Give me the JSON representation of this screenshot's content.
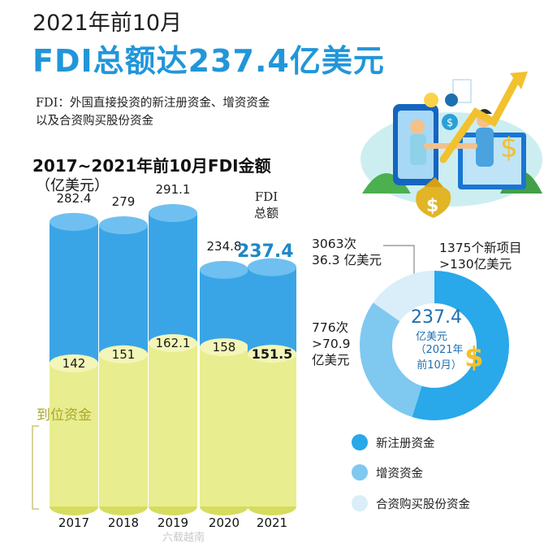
{
  "header": {
    "period": "2021年前10月",
    "title": "FDI总额达237.4亿美元",
    "definition_line1": "FDI：外国直接投资的新注册资金、增资资金",
    "definition_line2": "以及合资购买股份资金"
  },
  "chart_heading": "2017~2021年前10月FDI金额",
  "chart_unit": "（亿美元）",
  "fdi_total_label_line1": "FDI",
  "fdi_total_label_line2": "总额",
  "paid_in_label": "到位资金",
  "chart_data": [
    {
      "type": "bar",
      "title": "2017~2021年前10月FDI金额",
      "ylabel": "（亿美元）",
      "categories": [
        "2017",
        "2018",
        "2019",
        "2020",
        "2021"
      ],
      "series": [
        {
          "name": "FDI总额",
          "values": [
            282.4,
            279,
            291.1,
            234.8,
            237.4
          ],
          "labels": [
            "282.4",
            "279",
            "291.1",
            "234.8",
            "237.4"
          ],
          "color": "#3aa5e6"
        },
        {
          "name": "到位资金",
          "values": [
            142,
            151,
            162.1,
            158,
            151.5
          ],
          "labels": [
            "142",
            "151",
            "162.1",
            "158",
            "151.5"
          ],
          "color": "#e8ed8f"
        }
      ],
      "ylim": [
        0,
        300
      ],
      "highlight_category": "2021"
    },
    {
      "type": "pie",
      "title": "",
      "center_value": "237.4",
      "center_unit": "亿美元",
      "center_period_line1": "（2021年",
      "center_period_line2": "前10月）",
      "slices": [
        {
          "name": "新注册资金",
          "value": 130,
          "color": "#29a8ea",
          "text_line1": "1375个新项目",
          "text_line2": ">130亿美元"
        },
        {
          "name": "增资资金",
          "value": 70.9,
          "color": "#7fc8f0",
          "text_line1": "776次",
          "text_line2": ">70.9",
          "text_line3": "亿美元"
        },
        {
          "name": "合资购买股份资金",
          "value": 36.3,
          "color": "#d9eef8",
          "text_line1": "3063次",
          "text_line2": "36.3 亿美元"
        }
      ]
    }
  ],
  "legend": [
    {
      "label": "新注册资金",
      "color": "#29a8ea"
    },
    {
      "label": "增资资金",
      "color": "#7fc8f0"
    },
    {
      "label": "合资购买股份资金",
      "color": "#d9eef8"
    }
  ],
  "watermark": "六载越南"
}
